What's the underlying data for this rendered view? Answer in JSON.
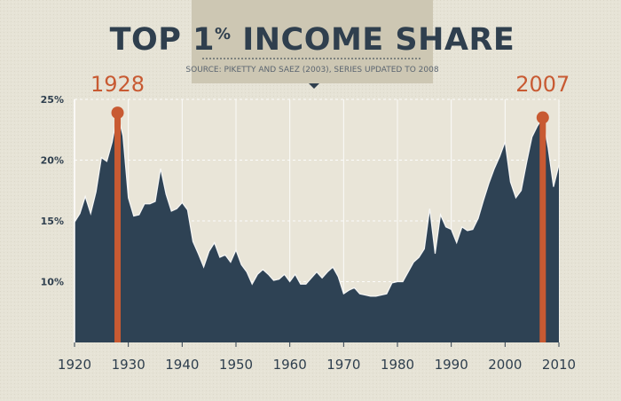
{
  "chart_data": {
    "type": "area",
    "title": "TOP 1% INCOME SHARE",
    "title_parts": {
      "before": "TOP 1",
      "percent": "%",
      "after": " INCOME SHARE"
    },
    "subtitle": "SOURCE: PIKETTY AND SAEZ (2003), SERIES UPDATED TO 2008",
    "xlabel": "",
    "ylabel": "",
    "xlim": [
      1920,
      2010
    ],
    "ylim": [
      5,
      25
    ],
    "x_ticks": [
      1920,
      1930,
      1940,
      1950,
      1960,
      1970,
      1980,
      1990,
      2000,
      2010
    ],
    "x_tick_labels": [
      "1920",
      "1930",
      "1940",
      "1950",
      "1960",
      "1970",
      "1980",
      "1990",
      "2000",
      "2010"
    ],
    "y_ticks": [
      10,
      15,
      20,
      25
    ],
    "y_tick_labels": [
      "10%",
      "15%",
      "20%",
      "25%"
    ],
    "grid": true,
    "colors": {
      "background": "#e6e3d6",
      "plot_background": "#e8e4d7",
      "area": "#2e4254",
      "grid": "#ffffff",
      "accent": "#c85a32",
      "title": "#2f3f4e",
      "banner": "#cfc9b5"
    },
    "series": [
      {
        "x": [
          1920,
          1921,
          1922,
          1923,
          1924,
          1925,
          1926,
          1927,
          1928,
          1929,
          1930,
          1931,
          1932,
          1933,
          1934,
          1935,
          1936,
          1937,
          1938,
          1939,
          1940,
          1941,
          1942,
          1943,
          1944,
          1945,
          1946,
          1947,
          1948,
          1949,
          1950,
          1951,
          1952,
          1953,
          1954,
          1955,
          1956,
          1957,
          1958,
          1959,
          1960,
          1961,
          1962,
          1963,
          1964,
          1965,
          1966,
          1967,
          1968,
          1969,
          1970,
          1971,
          1972,
          1973,
          1974,
          1975,
          1976,
          1977,
          1978,
          1979,
          1980,
          1981,
          1982,
          1983,
          1984,
          1985,
          1986,
          1987,
          1988,
          1989,
          1990,
          1991,
          1992,
          1993,
          1994,
          1995,
          1996,
          1997,
          1998,
          1999,
          2000,
          2001,
          2002,
          2003,
          2004,
          2005,
          2006,
          2007,
          2008,
          2009,
          2010
        ],
        "values": [
          14.9,
          15.6,
          17.0,
          15.6,
          17.4,
          20.2,
          19.9,
          21.5,
          23.9,
          22.0,
          16.9,
          15.4,
          15.5,
          16.4,
          16.4,
          16.6,
          19.3,
          17.2,
          15.8,
          16.0,
          16.5,
          15.9,
          13.3,
          12.3,
          11.2,
          12.5,
          13.2,
          12.0,
          12.2,
          11.6,
          12.6,
          11.4,
          10.8,
          9.8,
          10.6,
          11.0,
          10.6,
          10.1,
          10.2,
          10.6,
          10.0,
          10.6,
          9.8,
          9.8,
          10.3,
          10.8,
          10.3,
          10.8,
          11.2,
          10.4,
          9.0,
          9.3,
          9.5,
          9.0,
          8.9,
          8.8,
          8.8,
          8.9,
          9.0,
          9.9,
          10.0,
          10.0,
          10.8,
          11.6,
          12.0,
          12.7,
          16.0,
          12.3,
          15.5,
          14.5,
          14.3,
          13.2,
          14.5,
          14.2,
          14.3,
          15.2,
          16.7,
          18.1,
          19.3,
          20.3,
          21.5,
          18.2,
          16.9,
          17.5,
          19.8,
          21.9,
          22.8,
          23.5,
          21.0,
          17.8,
          19.6
        ]
      }
    ],
    "annotations": [
      {
        "x": 1928,
        "y": 23.9,
        "label": "1928"
      },
      {
        "x": 2007,
        "y": 23.5,
        "label": "2007"
      }
    ]
  }
}
